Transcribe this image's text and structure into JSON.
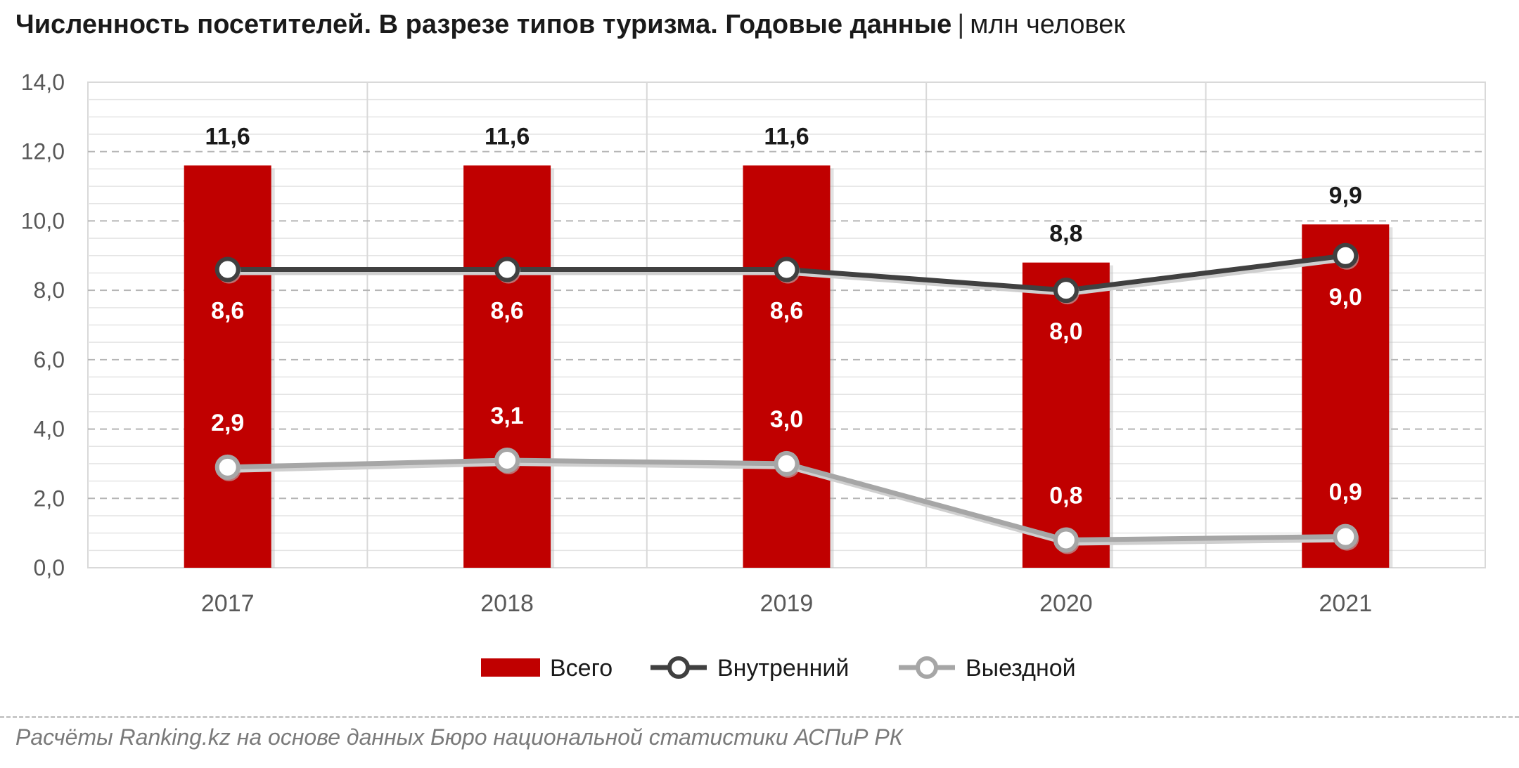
{
  "header": {
    "title": "Численность посетителей. В разрезе типов туризма. Годовые данные",
    "separator": "|",
    "unit": "млн человек"
  },
  "chart_data": {
    "type": "bar",
    "categories": [
      "2017",
      "2018",
      "2019",
      "2020",
      "2021"
    ],
    "ylim": [
      0,
      14
    ],
    "y_ticks": [
      "0,0",
      "2,0",
      "4,0",
      "6,0",
      "8,0",
      "10,0",
      "12,0",
      "14,0"
    ],
    "grid": true,
    "legend_position": "bottom",
    "series": [
      {
        "name": "Всего",
        "type": "bar",
        "color": "#c00000",
        "values": [
          11.6,
          11.6,
          11.6,
          8.8,
          9.9
        ],
        "labels": [
          "11,6",
          "11,6",
          "11,6",
          "8,8",
          "9,9"
        ]
      },
      {
        "name": "Внутренний",
        "type": "line",
        "color": "#404040",
        "values": [
          8.6,
          8.6,
          8.6,
          8.0,
          9.0
        ],
        "labels": [
          "8,6",
          "8,6",
          "8,6",
          "8,0",
          "9,0"
        ]
      },
      {
        "name": "Выездной",
        "type": "line",
        "color": "#a6a6a6",
        "values": [
          2.9,
          3.1,
          3.0,
          0.8,
          0.9
        ],
        "labels": [
          "2,9",
          "3,1",
          "3,0",
          "0,8",
          "0,9"
        ]
      }
    ]
  },
  "footer": {
    "source": "Расчёты Ranking.kz на основе данных Бюро национальной статистики АСПиР РК"
  }
}
